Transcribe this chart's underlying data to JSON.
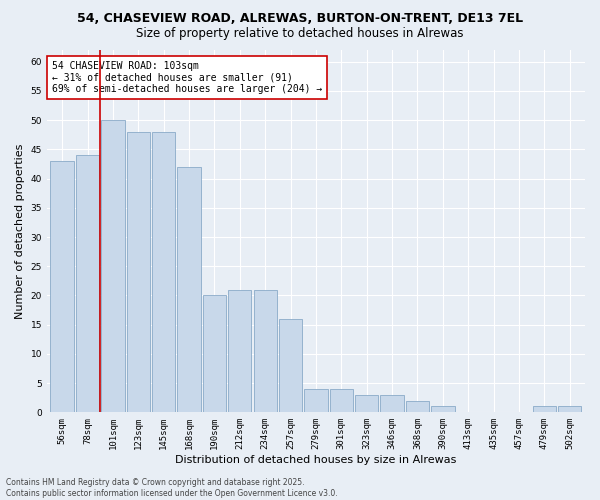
{
  "title1": "54, CHASEVIEW ROAD, ALREWAS, BURTON-ON-TRENT, DE13 7EL",
  "title2": "Size of property relative to detached houses in Alrewas",
  "xlabel": "Distribution of detached houses by size in Alrewas",
  "ylabel": "Number of detached properties",
  "categories": [
    "56sqm",
    "78sqm",
    "101sqm",
    "123sqm",
    "145sqm",
    "168sqm",
    "190sqm",
    "212sqm",
    "234sqm",
    "257sqm",
    "279sqm",
    "301sqm",
    "323sqm",
    "346sqm",
    "368sqm",
    "390sqm",
    "413sqm",
    "435sqm",
    "457sqm",
    "479sqm",
    "502sqm"
  ],
  "values": [
    43,
    44,
    50,
    48,
    48,
    42,
    20,
    21,
    21,
    16,
    4,
    4,
    3,
    3,
    2,
    1,
    0,
    0,
    0,
    1,
    1
  ],
  "bar_color": "#c8d8ea",
  "bar_edge_color": "#8aaac8",
  "vline_color": "#cc0000",
  "annotation_text": "54 CHASEVIEW ROAD: 103sqm\n← 31% of detached houses are smaller (91)\n69% of semi-detached houses are larger (204) →",
  "annotation_box_color": "#ffffff",
  "annotation_box_edge": "#cc0000",
  "ylim": [
    0,
    62
  ],
  "yticks": [
    0,
    5,
    10,
    15,
    20,
    25,
    30,
    35,
    40,
    45,
    50,
    55,
    60
  ],
  "background_color": "#e8eef5",
  "grid_color": "#ffffff",
  "footer": "Contains HM Land Registry data © Crown copyright and database right 2025.\nContains public sector information licensed under the Open Government Licence v3.0.",
  "title_fontsize": 9,
  "subtitle_fontsize": 8.5,
  "tick_fontsize": 6.5,
  "ylabel_fontsize": 8,
  "xlabel_fontsize": 8,
  "ann_fontsize": 7,
  "footer_fontsize": 5.5
}
